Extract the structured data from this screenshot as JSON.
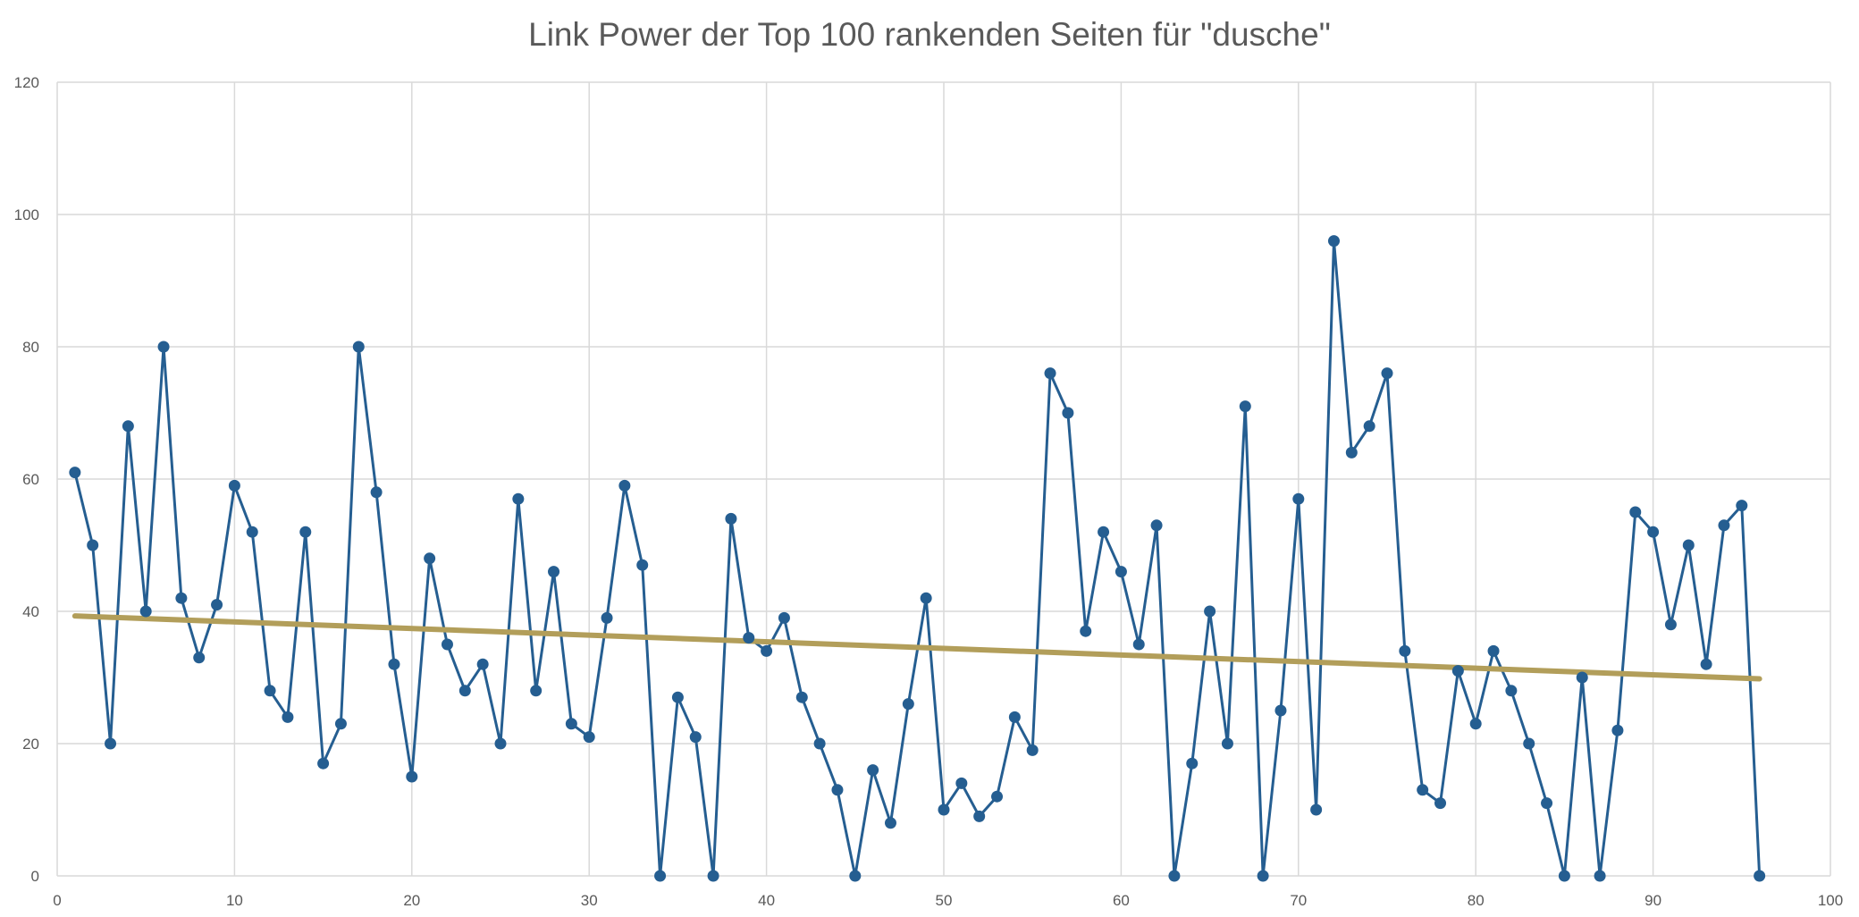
{
  "chart_data": {
    "type": "line",
    "title": "Link Power der Top 100 rankenden Seiten für \"dusche\"",
    "xlabel": "",
    "ylabel": "",
    "xlim": [
      0,
      100
    ],
    "ylim": [
      0,
      120
    ],
    "x_ticks": [
      0,
      10,
      20,
      30,
      40,
      50,
      60,
      70,
      80,
      90,
      100
    ],
    "y_ticks": [
      0,
      20,
      40,
      60,
      80,
      100,
      120
    ],
    "grid": true,
    "legend": "none",
    "series": [
      {
        "style": "line-with-markers",
        "color": "#255E91",
        "x": [
          1,
          2,
          3,
          4,
          5,
          6,
          7,
          8,
          9,
          10,
          11,
          12,
          13,
          14,
          15,
          16,
          17,
          18,
          19,
          20,
          21,
          22,
          23,
          24,
          25,
          26,
          27,
          28,
          29,
          30,
          31,
          32,
          33,
          34,
          35,
          36,
          37,
          38,
          39,
          40,
          41,
          42,
          43,
          44,
          45,
          46,
          47,
          48,
          49,
          50,
          51,
          52,
          53,
          54,
          55,
          56,
          57,
          58,
          59,
          60,
          61,
          62,
          63,
          64,
          65,
          66,
          67,
          68,
          69,
          70,
          71,
          72,
          73,
          74,
          75,
          76,
          77,
          78,
          79,
          80,
          81,
          82,
          83,
          84,
          85,
          86,
          87,
          88,
          89,
          90,
          91,
          92,
          93,
          94,
          95,
          96
        ],
        "values": [
          61,
          50,
          20,
          68,
          40,
          80,
          42,
          33,
          41,
          59,
          52,
          28,
          24,
          52,
          17,
          23,
          80,
          58,
          32,
          15,
          48,
          35,
          28,
          32,
          20,
          57,
          28,
          46,
          23,
          21,
          39,
          59,
          47,
          0,
          27,
          21,
          0,
          54,
          36,
          34,
          39,
          27,
          20,
          13,
          0,
          16,
          8,
          26,
          42,
          10,
          14,
          9,
          12,
          24,
          19,
          76,
          70,
          37,
          52,
          46,
          35,
          53,
          0,
          17,
          40,
          20,
          71,
          0,
          25,
          57,
          10,
          96,
          64,
          68,
          76,
          34,
          13,
          11,
          31,
          23,
          34,
          28,
          20,
          11,
          0,
          30,
          0,
          22,
          55,
          52,
          38,
          50,
          32,
          53,
          56,
          0
        ]
      },
      {
        "style": "trendline",
        "color": "#B29E5A",
        "x": [
          1,
          96
        ],
        "values": [
          39.3,
          29.8
        ]
      }
    ]
  }
}
